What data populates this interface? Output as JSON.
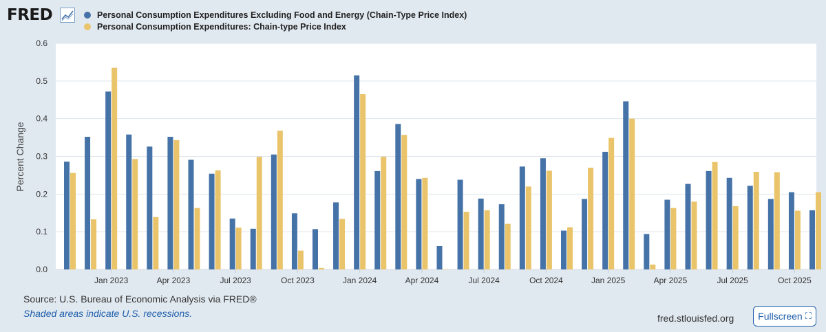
{
  "header": {
    "logo_text": "FRED",
    "legend": [
      {
        "label": "Personal Consumption Expenditures Excluding Food and Energy (Chain-Type Price Index)",
        "color": "#4572a7"
      },
      {
        "label": "Personal Consumption Expenditures: Chain-type Price Index",
        "color": "#e9c46a"
      }
    ]
  },
  "chart_data": {
    "type": "bar",
    "ylabel": "Percent Change",
    "xlabel": "",
    "ylim": [
      0,
      0.6
    ],
    "yticks": [
      "0.0",
      "0.1",
      "0.2",
      "0.3",
      "0.4",
      "0.5",
      "0.6"
    ],
    "grid": true,
    "x_tick_labels": [
      {
        "label": "Jan 2023",
        "index": 2
      },
      {
        "label": "Apr 2023",
        "index": 5
      },
      {
        "label": "Jul 2023",
        "index": 8
      },
      {
        "label": "Oct 2023",
        "index": 11
      },
      {
        "label": "Jan 2024",
        "index": 14
      },
      {
        "label": "Apr 2024",
        "index": 17
      },
      {
        "label": "Jul 2024",
        "index": 20
      },
      {
        "label": "Oct 2024",
        "index": 23
      },
      {
        "label": "Jan 2025",
        "index": 26
      },
      {
        "label": "Apr 2025",
        "index": 29
      },
      {
        "label": "Jul 2025",
        "index": 32
      },
      {
        "label": "Oct 2025",
        "index": 35
      }
    ],
    "categories": [
      "Nov 2022",
      "Dec 2022",
      "Jan 2023",
      "Feb 2023",
      "Mar 2023",
      "Apr 2023",
      "May 2023",
      "Jun 2023",
      "Jul 2023",
      "Aug 2023",
      "Sep 2023",
      "Oct 2023",
      "Nov 2023",
      "Dec 2023",
      "Jan 2024",
      "Feb 2024",
      "Mar 2024",
      "Apr 2024",
      "May 2024",
      "Jun 2024",
      "Jul 2024",
      "Aug 2024",
      "Sep 2024",
      "Oct 2024",
      "Nov 2024",
      "Dec 2024",
      "Jan 2025",
      "Feb 2025",
      "Mar 2025",
      "Apr 2025",
      "May 2025",
      "Jun 2025",
      "Jul 2025",
      "Aug 2025",
      "Sep 2025",
      "Oct 2025",
      "Nov 2025"
    ],
    "series": [
      {
        "name": "Personal Consumption Expenditures Excluding Food and Energy (Chain-Type Price Index)",
        "color": "#4572a7",
        "values": [
          0.286,
          0.352,
          0.472,
          0.358,
          0.326,
          0.352,
          0.291,
          0.254,
          0.135,
          0.108,
          0.305,
          0.149,
          0.107,
          0.178,
          0.515,
          0.261,
          0.386,
          0.24,
          0.062,
          0.238,
          0.188,
          0.173,
          0.273,
          0.295,
          0.103,
          0.187,
          0.312,
          0.446,
          0.094,
          0.185,
          0.227,
          0.261,
          0.243,
          0.222,
          0.187,
          0.205,
          0.157
        ]
      },
      {
        "name": "Personal Consumption Expenditures: Chain-type Price Index",
        "color": "#e9c46a",
        "values": [
          0.256,
          0.133,
          0.535,
          0.293,
          0.139,
          0.343,
          0.163,
          0.263,
          0.111,
          0.299,
          0.368,
          0.05,
          0.004,
          0.134,
          0.465,
          0.299,
          0.357,
          0.243,
          0.001,
          0.153,
          0.157,
          0.121,
          0.22,
          0.262,
          0.112,
          0.27,
          0.349,
          0.4,
          0.013,
          0.163,
          0.18,
          0.285,
          0.168,
          0.259,
          0.258,
          0.156,
          0.205
        ]
      }
    ]
  },
  "footer": {
    "source": "Source: U.S. Bureau of Economic Analysis via FRED®",
    "recession_note": "Shaded areas indicate U.S. recessions.",
    "site": "fred.stlouisfed.org",
    "fullscreen_label": "Fullscreen"
  }
}
